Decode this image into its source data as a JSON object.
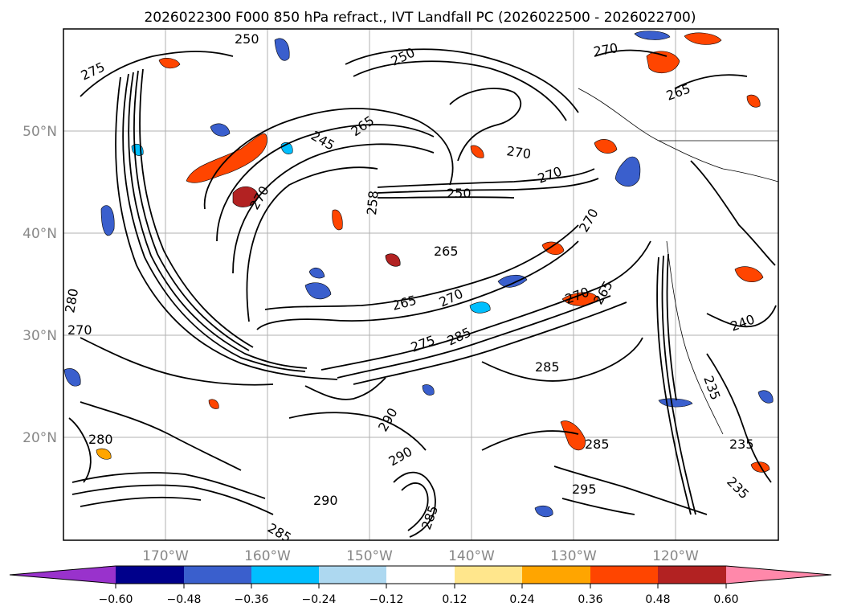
{
  "figure": {
    "title": "2026022300 F000 850 hPa refract., IVT Landfall PC (2026022500 - 2026022700)"
  },
  "map": {
    "lat_labels": [
      "50°N",
      "40°N",
      "30°N",
      "20°N"
    ],
    "lon_labels": [
      "170°W",
      "160°W",
      "150°W",
      "140°W",
      "130°W",
      "120°W"
    ],
    "contour_labels": [
      "250",
      "275",
      "270",
      "265",
      "250",
      "245",
      "265",
      "270",
      "270",
      "265",
      "270",
      "270",
      "258",
      "250",
      "265",
      "270",
      "265",
      "270",
      "285",
      "290",
      "280",
      "270",
      "275",
      "285",
      "285",
      "290",
      "295",
      "285",
      "280",
      "290",
      "285",
      "235",
      "240",
      "235",
      "235"
    ]
  },
  "colorbar": {
    "ticks": [
      "−0.60",
      "−0.48",
      "−0.36",
      "−0.24",
      "−0.12",
      "0.12",
      "0.24",
      "0.36",
      "0.48",
      "0.60"
    ],
    "colors": [
      "#9932cc",
      "#00008b",
      "#3a5fcd",
      "#00bfff",
      "#add8f0",
      "#ffffff",
      "#ffe68c",
      "#ffa500",
      "#ff4500",
      "#b22222",
      "#ff88aa"
    ]
  }
}
